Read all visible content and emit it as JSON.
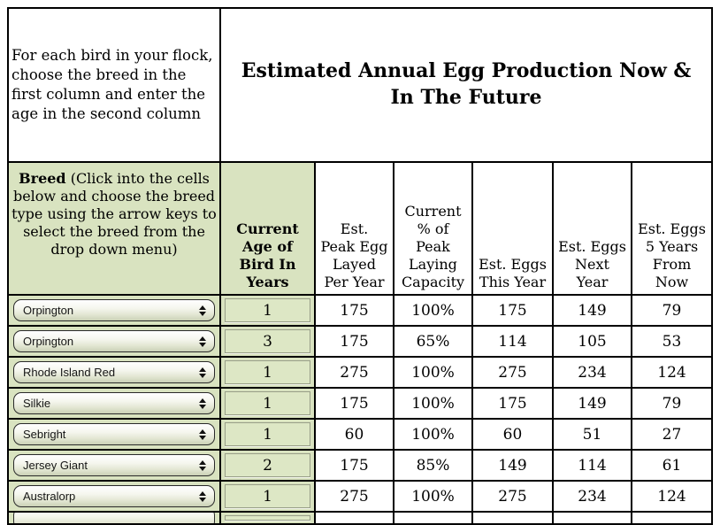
{
  "instructions": "For each bird in your flock, choose the breed in the first column and enter the age in the second column",
  "title": "Estimated Annual Egg Production Now & In The Future",
  "headers": {
    "breed_bold": "Breed",
    "breed_rest": " (Click into the cells below and choose the breed type using the arrow keys to select the breed from the drop down menu)",
    "age": "Current\nAge of\nBird In\nYears",
    "peak": "Est.\nPeak Egg\nLayed\nPer Year",
    "pct": "Current\n% of\nPeak\nLaying\nCapacity",
    "this_year": "Est. Eggs\nThis Year",
    "next_year": "Est. Eggs\nNext\nYear",
    "five_years": "Est. Eggs\n5 Years\nFrom\nNow"
  },
  "colors": {
    "cell_green": "#d9e3c0",
    "grid_border": "#000000",
    "dropdown_top": "#ffffff",
    "dropdown_bottom": "#cad1b6"
  },
  "rows": [
    {
      "breed": "Orpington",
      "age": "1",
      "peak": "175",
      "pct": "100%",
      "this_year": "175",
      "next_year": "149",
      "five_years": "79"
    },
    {
      "breed": "Orpington",
      "age": "3",
      "peak": "175",
      "pct": "65%",
      "this_year": "114",
      "next_year": "105",
      "five_years": "53"
    },
    {
      "breed": "Rhode Island Red",
      "age": "1",
      "peak": "275",
      "pct": "100%",
      "this_year": "275",
      "next_year": "234",
      "five_years": "124"
    },
    {
      "breed": "Silkie",
      "age": "1",
      "peak": "175",
      "pct": "100%",
      "this_year": "175",
      "next_year": "149",
      "five_years": "79"
    },
    {
      "breed": "Sebright",
      "age": "1",
      "peak": "60",
      "pct": "100%",
      "this_year": "60",
      "next_year": "51",
      "five_years": "27"
    },
    {
      "breed": "Jersey Giant",
      "age": "2",
      "peak": "175",
      "pct": "85%",
      "this_year": "149",
      "next_year": "114",
      "five_years": "61"
    },
    {
      "breed": "Australorp",
      "age": "1",
      "peak": "275",
      "pct": "100%",
      "this_year": "275",
      "next_year": "234",
      "five_years": "124"
    }
  ]
}
